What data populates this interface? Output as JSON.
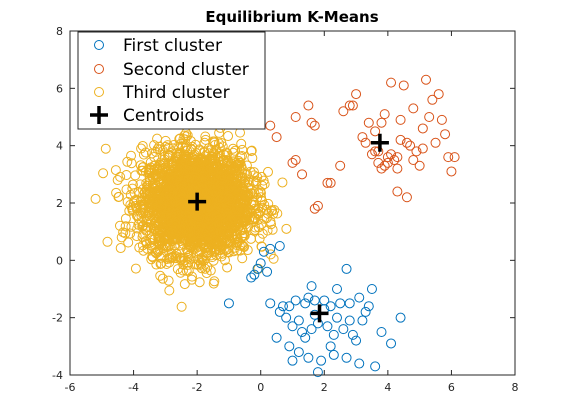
{
  "chart_data": {
    "type": "scatter",
    "title": "Equilibrium K-Means",
    "xlabel": "",
    "ylabel": "",
    "xlim": [
      -6,
      8
    ],
    "ylim": [
      -4,
      8
    ],
    "x_ticks": [
      "-6",
      "-4",
      "-2",
      "0",
      "2",
      "4",
      "6",
      "8"
    ],
    "y_ticks": [
      "-4",
      "-2",
      "0",
      "2",
      "4",
      "6",
      "8"
    ],
    "grid": false,
    "legend_position": "top-left",
    "series": [
      {
        "name": "First cluster",
        "color": "#0072BD",
        "marker": "circle-open",
        "points": [
          [
            -0.2,
            -0.5
          ],
          [
            -0.1,
            -0.3
          ],
          [
            0,
            -0.1
          ],
          [
            0.1,
            0.3
          ],
          [
            0.3,
            0.4
          ],
          [
            0.6,
            0.5
          ],
          [
            0.2,
            -0.4
          ],
          [
            -0.3,
            -0.6
          ],
          [
            -1,
            -1.5
          ],
          [
            0.3,
            -1.5
          ],
          [
            0.6,
            -1.8
          ],
          [
            0.9,
            -1.6
          ],
          [
            1.1,
            -1.4
          ],
          [
            1.4,
            -1.5
          ],
          [
            1.5,
            -1.3
          ],
          [
            1.7,
            -1.4
          ],
          [
            2,
            -1.4
          ],
          [
            2.2,
            -1.6
          ],
          [
            2.5,
            -1.5
          ],
          [
            2.8,
            -1.5
          ],
          [
            3.1,
            -1.3
          ],
          [
            3.4,
            -1.6
          ],
          [
            0.8,
            -2
          ],
          [
            1,
            -2.3
          ],
          [
            1.2,
            -2.1
          ],
          [
            1.3,
            -2.5
          ],
          [
            1.6,
            -2.4
          ],
          [
            1.8,
            -2.2
          ],
          [
            2.1,
            -2.3
          ],
          [
            2.3,
            -2.6
          ],
          [
            2.6,
            -2.4
          ],
          [
            2.9,
            -2.6
          ],
          [
            3.2,
            -2.1
          ],
          [
            0.5,
            -2.7
          ],
          [
            0.9,
            -3
          ],
          [
            1.2,
            -3.2
          ],
          [
            1.5,
            -3.4
          ],
          [
            1.9,
            -3.5
          ],
          [
            2.3,
            -3.3
          ],
          [
            2.7,
            -3.4
          ],
          [
            3.1,
            -3.6
          ],
          [
            3.8,
            -2.5
          ],
          [
            4.1,
            -2.9
          ],
          [
            4.4,
            -2
          ],
          [
            3.5,
            -1
          ],
          [
            2.7,
            -0.3
          ],
          [
            1.6,
            -0.9
          ],
          [
            1,
            -3.5
          ],
          [
            2.4,
            -1
          ],
          [
            3.6,
            -3.7
          ],
          [
            2,
            -1.7
          ],
          [
            1.7,
            -1.9
          ],
          [
            2.4,
            -2
          ],
          [
            2.8,
            -2.1
          ],
          [
            1.4,
            -2.7
          ],
          [
            2.2,
            -3
          ],
          [
            3,
            -2.8
          ],
          [
            0.7,
            -1.6
          ],
          [
            3.3,
            -1.8
          ],
          [
            1.8,
            -3.9
          ]
        ]
      },
      {
        "name": "Second cluster",
        "color": "#D95319",
        "marker": "circle-open",
        "points": [
          [
            0.3,
            4.7
          ],
          [
            0.5,
            4.3
          ],
          [
            1.1,
            5
          ],
          [
            1.5,
            5.4
          ],
          [
            1.6,
            4.8
          ],
          [
            1.7,
            4.7
          ],
          [
            1.1,
            3.5
          ],
          [
            1,
            3.4
          ],
          [
            1.3,
            3
          ],
          [
            1.8,
            1.9
          ],
          [
            1.7,
            1.8
          ],
          [
            2.1,
            2.7
          ],
          [
            2.2,
            2.7
          ],
          [
            2.5,
            3.3
          ],
          [
            2.6,
            5.2
          ],
          [
            2.8,
            5.4
          ],
          [
            3,
            5.8
          ],
          [
            3.2,
            4.3
          ],
          [
            3.4,
            4.8
          ],
          [
            3.5,
            3.7
          ],
          [
            3.6,
            3.8
          ],
          [
            3.7,
            3.4
          ],
          [
            3.8,
            3.2
          ],
          [
            3.9,
            3.3
          ],
          [
            4,
            3.6
          ],
          [
            4.1,
            3.7
          ],
          [
            4.2,
            3.5
          ],
          [
            4.3,
            3.6
          ],
          [
            4.4,
            4.2
          ],
          [
            4.6,
            4.1
          ],
          [
            4.7,
            4
          ],
          [
            4.9,
            3.8
          ],
          [
            5,
            3.3
          ],
          [
            5.1,
            4.6
          ],
          [
            5.3,
            5
          ],
          [
            5.4,
            5.6
          ],
          [
            5.6,
            5.8
          ],
          [
            5.7,
            4.9
          ],
          [
            5.8,
            4.4
          ],
          [
            5.9,
            3.6
          ],
          [
            6,
            3.1
          ],
          [
            5.2,
            6.3
          ],
          [
            4.5,
            6.1
          ],
          [
            4.1,
            6.2
          ],
          [
            3.6,
            4.5
          ],
          [
            4.8,
            5.3
          ],
          [
            4.4,
            4.9
          ],
          [
            3.3,
            4.1
          ],
          [
            2.9,
            5.4
          ],
          [
            3.9,
            5.1
          ],
          [
            5.5,
            4.1
          ],
          [
            4,
            3.4
          ],
          [
            4.6,
            2.2
          ],
          [
            4.3,
            2.4
          ],
          [
            5.1,
            3.9
          ],
          [
            4.8,
            3.5
          ],
          [
            3.7,
            3.8
          ],
          [
            4.3,
            3.2
          ],
          [
            6.1,
            3.6
          ],
          [
            3.8,
            4.8
          ]
        ]
      },
      {
        "name": "Third cluster",
        "color": "#EDB120",
        "marker": "circle-open",
        "count": 3000,
        "center": [
          -2,
          2
        ],
        "spread_sd": [
          0.85,
          0.9
        ],
        "points": []
      },
      {
        "name": "Centroids",
        "color": "#000000",
        "marker": "plus-bold",
        "points": [
          [
            -2,
            2.05
          ],
          [
            1.85,
            -1.85
          ],
          [
            3.75,
            4.1
          ]
        ]
      }
    ]
  }
}
